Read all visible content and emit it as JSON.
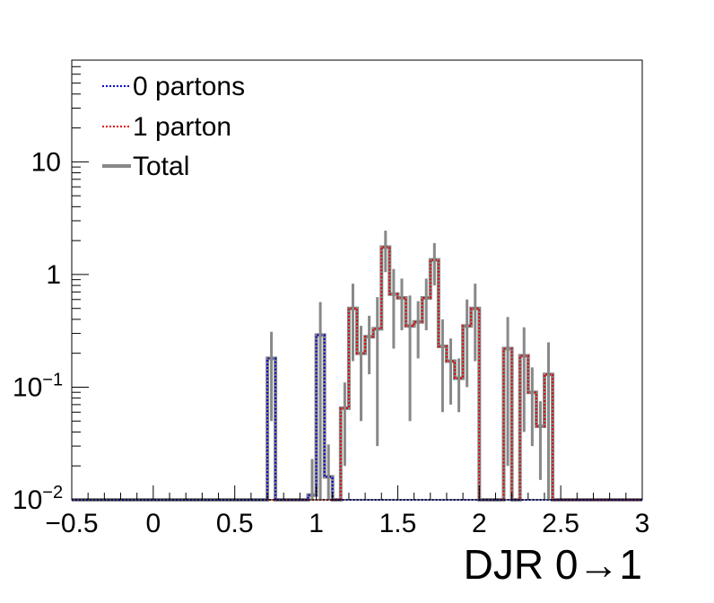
{
  "chart_data": {
    "type": "histogram",
    "xlabel": "DJR 0→1",
    "ylabel": "",
    "xlim": [
      -0.5,
      3.0
    ],
    "ylim": [
      0.01,
      80
    ],
    "yscale": "log",
    "bin_width": 0.05,
    "x_tick_labels": [
      "−0.5",
      "0",
      "0.5",
      "1",
      "1.5",
      "2",
      "2.5",
      "3"
    ],
    "x_tick_values": [
      -0.5,
      0,
      0.5,
      1,
      1.5,
      2,
      2.5,
      3
    ],
    "y_ticks": [
      {
        "value": 0.01,
        "base": "10",
        "exp": "−2"
      },
      {
        "value": 0.1,
        "base": "10",
        "exp": "−1"
      },
      {
        "value": 1,
        "base": "1",
        "exp": ""
      },
      {
        "value": 10,
        "base": "10",
        "exp": ""
      }
    ],
    "legend": {
      "position": "top-left"
    },
    "series": [
      {
        "name": "0 partons",
        "color": "#0000cc",
        "style": "dotted",
        "bins": [
          {
            "x": 0.7,
            "y": 0.18,
            "err": 0.13
          },
          {
            "x": 0.95,
            "y": 0.011,
            "err": 0.012
          },
          {
            "x": 1.0,
            "y": 0.29,
            "err": 0.28
          },
          {
            "x": 1.05,
            "y": 0.016,
            "err": 0.015
          }
        ]
      },
      {
        "name": "1 parton",
        "color": "#dd0000",
        "style": "dotted",
        "bins": [
          {
            "x": 1.15,
            "y": 0.065,
            "err": 0.045
          },
          {
            "x": 1.2,
            "y": 0.5,
            "err": 0.33
          },
          {
            "x": 1.25,
            "y": 0.2,
            "err": 0.15
          },
          {
            "x": 1.3,
            "y": 0.28,
            "err": 0.15
          },
          {
            "x": 1.35,
            "y": 0.33,
            "err": 0.3
          },
          {
            "x": 1.4,
            "y": 1.75,
            "err": 0.7
          },
          {
            "x": 1.45,
            "y": 0.67,
            "err": 0.45
          },
          {
            "x": 1.5,
            "y": 0.62,
            "err": 0.3
          },
          {
            "x": 1.55,
            "y": 0.35,
            "err": 0.3
          },
          {
            "x": 1.6,
            "y": 0.38,
            "err": 0.2
          },
          {
            "x": 1.65,
            "y": 0.62,
            "err": 0.3
          },
          {
            "x": 1.7,
            "y": 1.35,
            "err": 0.55
          },
          {
            "x": 1.75,
            "y": 0.23,
            "err": 0.17
          },
          {
            "x": 1.8,
            "y": 0.17,
            "err": 0.1
          },
          {
            "x": 1.85,
            "y": 0.12,
            "err": 0.06
          },
          {
            "x": 1.9,
            "y": 0.35,
            "err": 0.25
          },
          {
            "x": 1.95,
            "y": 0.5,
            "err": 0.33
          },
          {
            "x": 2.15,
            "y": 0.22,
            "err": 0.2
          },
          {
            "x": 2.25,
            "y": 0.19,
            "err": 0.15
          },
          {
            "x": 2.3,
            "y": 0.09,
            "err": 0.06
          },
          {
            "x": 2.35,
            "y": 0.045,
            "err": 0.03
          },
          {
            "x": 2.4,
            "y": 0.13,
            "err": 0.12
          }
        ]
      },
      {
        "name": "Total",
        "color": "#888888",
        "style": "solid"
      }
    ]
  }
}
